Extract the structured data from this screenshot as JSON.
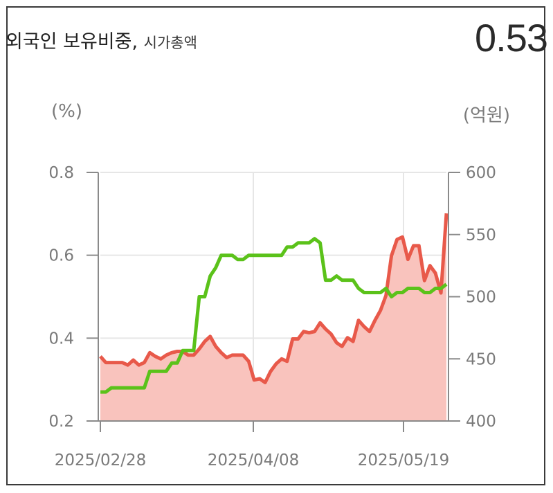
{
  "header": {
    "title": "외국인 보유비중,",
    "subtitle": "시가총액",
    "value": "0.53"
  },
  "chart_data": {
    "type": "line",
    "left_axis": {
      "unit": "(%)",
      "ticks": [
        "0.8",
        "0.6",
        "0.4",
        "0.2"
      ],
      "ylim": [
        0.2,
        0.8
      ]
    },
    "right_axis": {
      "unit": "(억원)",
      "ticks": [
        "600",
        "550",
        "500",
        "450",
        "400"
      ],
      "ylim": [
        400,
        600
      ]
    },
    "x_labels": [
      "2025/02/28",
      "2025/04/08",
      "2025/05/19"
    ],
    "grid": true,
    "series": [
      {
        "axis": "right",
        "style": "area",
        "line_color": "#e8594a",
        "fill_color": "#f9c3bd",
        "values": [
          452,
          447,
          447,
          447,
          447,
          445,
          449,
          445,
          447,
          455,
          452,
          450,
          453,
          455,
          456,
          456,
          453,
          453,
          458,
          464,
          468,
          460,
          455,
          451,
          453,
          453,
          453,
          448,
          433,
          434,
          431,
          440,
          446,
          450,
          448,
          466,
          466,
          472,
          471,
          472,
          479,
          474,
          470,
          463,
          460,
          467,
          464,
          481,
          476,
          472,
          481,
          489,
          501,
          533,
          546,
          548,
          530,
          541,
          541,
          513,
          525,
          519,
          503,
          567
        ]
      },
      {
        "axis": "left",
        "style": "line",
        "line_color": "#5bc21a",
        "values": [
          0.27,
          0.27,
          0.28,
          0.28,
          0.28,
          0.28,
          0.28,
          0.28,
          0.28,
          0.32,
          0.32,
          0.32,
          0.32,
          0.34,
          0.34,
          0.37,
          0.37,
          0.37,
          0.5,
          0.5,
          0.55,
          0.57,
          0.6,
          0.6,
          0.6,
          0.59,
          0.59,
          0.6,
          0.6,
          0.6,
          0.6,
          0.6,
          0.6,
          0.6,
          0.62,
          0.62,
          0.63,
          0.63,
          0.63,
          0.64,
          0.63,
          0.54,
          0.54,
          0.55,
          0.54,
          0.54,
          0.54,
          0.52,
          0.51,
          0.51,
          0.51,
          0.51,
          0.52,
          0.5,
          0.51,
          0.51,
          0.52,
          0.52,
          0.52,
          0.51,
          0.51,
          0.52,
          0.52,
          0.53
        ]
      }
    ]
  }
}
